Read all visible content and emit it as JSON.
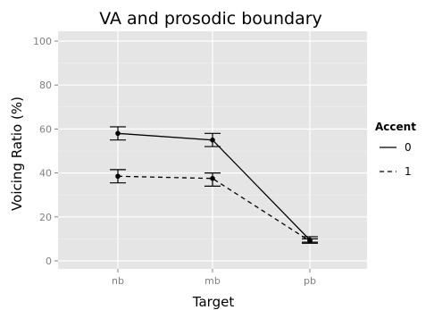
{
  "chart_data": {
    "type": "line",
    "title": "VA and prosodic boundary",
    "xlabel": "Target",
    "ylabel": "Voicing Ratio (%)",
    "categories": [
      "nb",
      "mb",
      "pb"
    ],
    "ylim": [
      0,
      100
    ],
    "yticks": [
      0,
      20,
      40,
      60,
      80,
      100
    ],
    "grid": true,
    "legend": {
      "title": "Accent",
      "position": "right"
    },
    "series": [
      {
        "name": "0",
        "line_style": "solid",
        "values": [
          58,
          55,
          9.5
        ],
        "error_low": [
          55,
          52,
          8.5
        ],
        "error_high": [
          61,
          58,
          11
        ]
      },
      {
        "name": "1",
        "line_style": "dashed",
        "values": [
          38.5,
          37.5,
          9
        ],
        "error_low": [
          35.5,
          34,
          8
        ],
        "error_high": [
          41.5,
          40,
          10
        ]
      }
    ],
    "colors": {
      "panel": "#e5e5e5",
      "grid_major": "#ffffff",
      "grid_minor": "#f2f2f2",
      "ink": "#000000",
      "tick_text": "#7f7f7f"
    }
  }
}
